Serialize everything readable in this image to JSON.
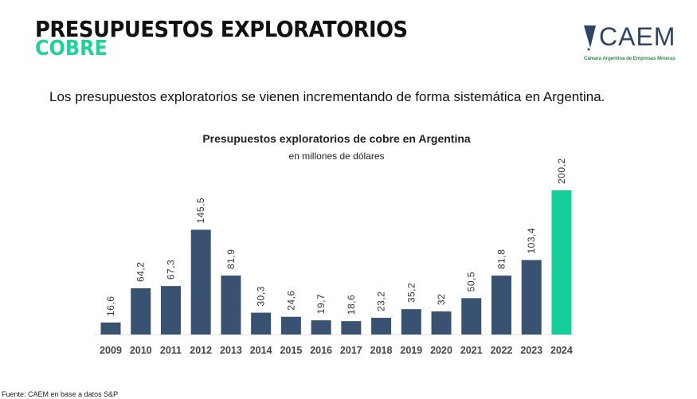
{
  "header": {
    "title": "PRESUPUESTOS EXPLORATORIOS",
    "subtitle": "COBRE"
  },
  "logo": {
    "name": "CAEM",
    "tagline": "Cámara Argentina de Empresas Mineras"
  },
  "headline": "Los presupuestos exploratorios se vienen incrementando de forma sistemática en Argentina.",
  "source": "Fuente: CAEM en base a datos S&P",
  "colors": {
    "bar": "#3a5272",
    "highlight": "#14cf9a",
    "accent": "#1fd19a"
  },
  "chart_data": {
    "type": "bar",
    "title": "Presupuestos exploratorios de cobre en Argentina",
    "subtitle": "en millones de dólares",
    "categories": [
      "2009",
      "2010",
      "2011",
      "2012",
      "2013",
      "2014",
      "2015",
      "2016",
      "2017",
      "2018",
      "2019",
      "2020",
      "2021",
      "2022",
      "2023",
      "2024"
    ],
    "values": [
      16.6,
      64.2,
      67.3,
      145.5,
      81.9,
      30.3,
      24.6,
      19.7,
      18.6,
      23.2,
      35.2,
      32,
      50.5,
      81.8,
      103.4,
      200.2
    ],
    "data_labels": [
      "16,6",
      "64,2",
      "67,3",
      "145,5",
      "81,9",
      "30,3",
      "24,6",
      "19,7",
      "18,6",
      "23,2",
      "35,2",
      "32",
      "50,5",
      "81,8",
      "103,4",
      "200,2"
    ],
    "highlighted_category": "2024",
    "ylim": [
      0,
      200.2
    ],
    "grid": false,
    "legend": "none"
  }
}
